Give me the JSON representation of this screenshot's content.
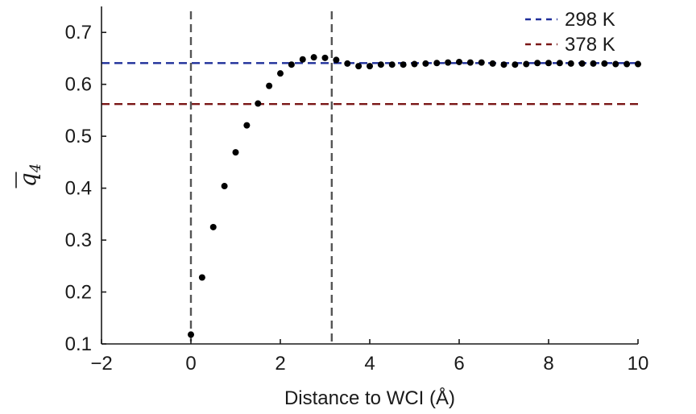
{
  "chart_data": {
    "type": "scatter",
    "title": "",
    "xlabel": "Distance to WCI (Å)",
    "ylabel": {
      "main": "q",
      "sub": "4"
    },
    "xlim": [
      -2,
      10
    ],
    "ylim": [
      0.1,
      0.75
    ],
    "xticks": [
      -2,
      0,
      2,
      4,
      6,
      8,
      10
    ],
    "xtick_labels": [
      "−2",
      "0",
      "2",
      "4",
      "6",
      "8",
      "10"
    ],
    "yticks": [
      0.1,
      0.2,
      0.3,
      0.4,
      0.5,
      0.6,
      0.7
    ],
    "ytick_labels": [
      "0.1",
      "0.2",
      "0.3",
      "0.4",
      "0.5",
      "0.6",
      "0.7"
    ],
    "grid": false,
    "legend_position": "top-right",
    "series": [
      {
        "x": [
          0.0,
          0.25,
          0.5,
          0.75,
          1.0,
          1.25,
          1.5,
          1.75,
          2.0,
          2.25,
          2.5,
          2.75,
          3.0,
          3.25,
          3.5,
          3.75,
          4.0,
          4.25,
          4.5,
          4.75,
          5.0,
          5.25,
          5.5,
          5.75,
          6.0,
          6.25,
          6.5,
          6.75,
          7.0,
          7.25,
          7.5,
          7.75,
          8.0,
          8.25,
          8.5,
          8.75,
          9.0,
          9.25,
          9.5,
          9.75,
          10.0
        ],
        "y": [
          0.118,
          0.228,
          0.325,
          0.404,
          0.469,
          0.521,
          0.563,
          0.597,
          0.621,
          0.638,
          0.648,
          0.652,
          0.651,
          0.647,
          0.64,
          0.635,
          0.635,
          0.638,
          0.638,
          0.638,
          0.639,
          0.64,
          0.641,
          0.642,
          0.643,
          0.642,
          0.642,
          0.64,
          0.638,
          0.638,
          0.639,
          0.641,
          0.641,
          0.641,
          0.64,
          0.64,
          0.64,
          0.64,
          0.639,
          0.639,
          0.639
        ],
        "color": "#000000"
      }
    ],
    "reference_lines": [
      {
        "orientation": "horizontal",
        "value": 0.641,
        "label": "298 K",
        "color": "#1f2f9a"
      },
      {
        "orientation": "horizontal",
        "value": 0.562,
        "label": "378 K",
        "color": "#7a1616"
      },
      {
        "orientation": "vertical",
        "value": 0.0,
        "color": "#555555"
      },
      {
        "orientation": "vertical",
        "value": 3.15,
        "color": "#555555"
      }
    ]
  }
}
